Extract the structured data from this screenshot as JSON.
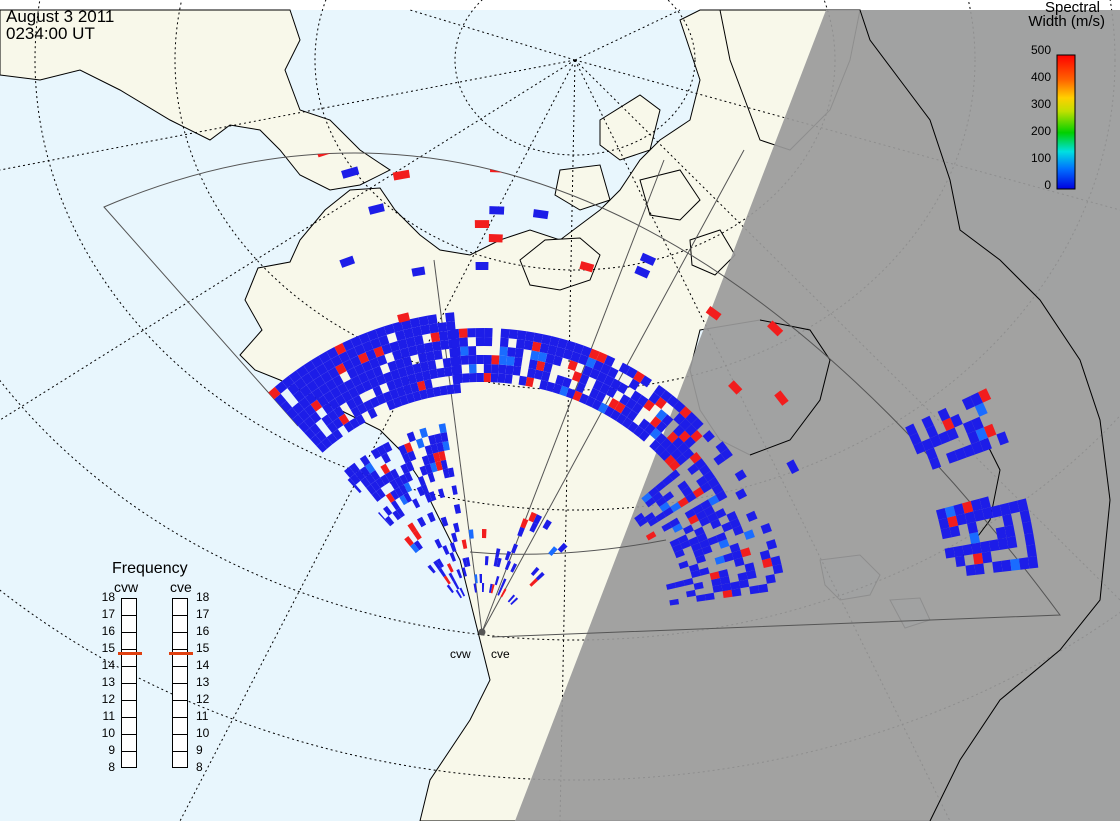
{
  "header": {
    "date": "August  3 2011",
    "time": "0234:00 UT"
  },
  "colorbar": {
    "title_line1": "Spectral",
    "title_line2": "Width (m/s)",
    "ticks": [
      "500",
      "400",
      "300",
      "200",
      "100",
      "0"
    ]
  },
  "frequency_panel": {
    "title": "Frequency",
    "radars": [
      {
        "name": "cvw",
        "freq_mhz": 14.8
      },
      {
        "name": "cve",
        "freq_mhz": 14.8
      }
    ],
    "ticks": [
      "18",
      "17",
      "16",
      "15",
      "14",
      "13",
      "12",
      "11",
      "10",
      "9",
      "8"
    ]
  },
  "radar_site_labels": [
    "cvw",
    "cve"
  ],
  "colors": {
    "ocean": "#e8f6fd",
    "land": "#f8f8ea",
    "night": "#9a9a9a",
    "echo": "#1d1de8",
    "high_width": "#f21d1d",
    "freq_marker": "#e04010"
  }
}
